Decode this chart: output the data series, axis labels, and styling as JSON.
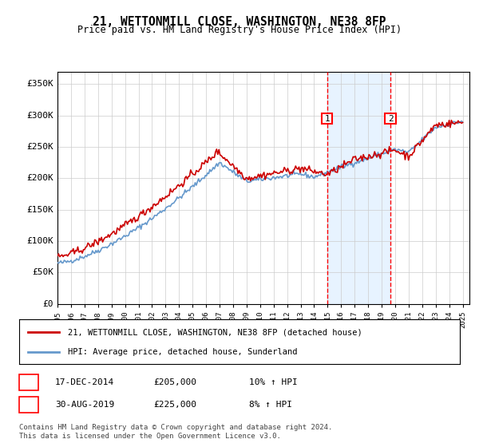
{
  "title": "21, WETTONMILL CLOSE, WASHINGTON, NE38 8FP",
  "subtitle": "Price paid vs. HM Land Registry's House Price Index (HPI)",
  "ylabel_ticks": [
    "£0",
    "£50K",
    "£100K",
    "£150K",
    "£200K",
    "£250K",
    "£300K",
    "£350K"
  ],
  "ytick_values": [
    0,
    50000,
    100000,
    150000,
    200000,
    250000,
    300000,
    350000
  ],
  "ylim": [
    0,
    370000
  ],
  "xlim_start": 1995.0,
  "xlim_end": 2025.5,
  "hpi_color": "#6699cc",
  "price_color": "#cc0000",
  "marker1_date": 2014.96,
  "marker2_date": 2019.66,
  "marker1_label": "1",
  "marker2_label": "2",
  "legend_line1": "21, WETTONMILL CLOSE, WASHINGTON, NE38 8FP (detached house)",
  "legend_line2": "HPI: Average price, detached house, Sunderland",
  "footnote_line1": "Contains HM Land Registry data © Crown copyright and database right 2024.",
  "footnote_line2": "This data is licensed under the Open Government Licence v3.0.",
  "table_row1_num": "1",
  "table_row1_date": "17-DEC-2014",
  "table_row1_price": "£205,000",
  "table_row1_hpi": "10% ↑ HPI",
  "table_row2_num": "2",
  "table_row2_date": "30-AUG-2019",
  "table_row2_price": "£225,000",
  "table_row2_hpi": "8% ↑ HPI",
  "background_color": "#ffffff",
  "grid_color": "#cccccc",
  "shade_color": "#ddeeff"
}
